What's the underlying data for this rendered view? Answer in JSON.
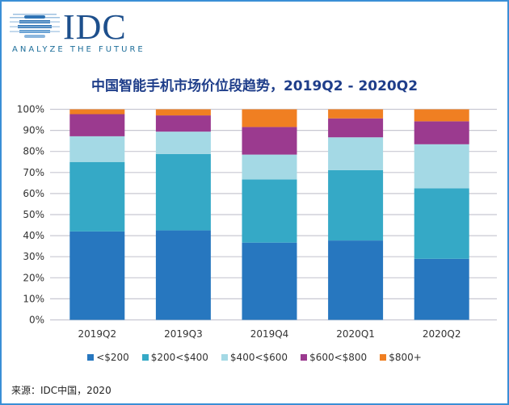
{
  "logo": {
    "brand": "IDC",
    "tagline": "ANALYZE THE FUTURE"
  },
  "source": "来源：IDC中国，2020",
  "colors": {
    "<$200": "#2777bf",
    "$200<$400": "#35a9c6",
    "$400<$600": "#a4d9e5",
    "$600<$800": "#9b3a8f",
    "$800+": "#f07f22",
    "title": "#1f3e8a",
    "grid": "#c8c8d2"
  },
  "chart_data": {
    "type": "bar",
    "stacked": true,
    "title": "中国智能手机市场价位段趋势，2019Q2 - 2020Q2",
    "xlabel": "",
    "ylabel": "",
    "ylim": [
      0,
      100
    ],
    "yticks": [
      "0%",
      "10%",
      "20%",
      "30%",
      "40%",
      "50%",
      "60%",
      "70%",
      "80%",
      "90%",
      "100%"
    ],
    "grid": true,
    "legend_position": "bottom",
    "categories": [
      "2019Q2",
      "2019Q3",
      "2019Q4",
      "2020Q1",
      "2020Q2"
    ],
    "series": [
      {
        "name": "<$200",
        "values": [
          42.0,
          42.5,
          36.7,
          37.7,
          29.0
        ]
      },
      {
        "name": "$200<$400",
        "values": [
          33.0,
          36.3,
          30.0,
          33.4,
          33.5
        ]
      },
      {
        "name": "$400<$600",
        "values": [
          12.2,
          10.6,
          11.8,
          15.6,
          20.9
        ]
      },
      {
        "name": "$600<$800",
        "values": [
          10.5,
          7.7,
          13.1,
          9.0,
          10.9
        ]
      },
      {
        "name": "$800+",
        "values": [
          2.3,
          2.9,
          8.4,
          4.3,
          5.7
        ]
      }
    ]
  }
}
